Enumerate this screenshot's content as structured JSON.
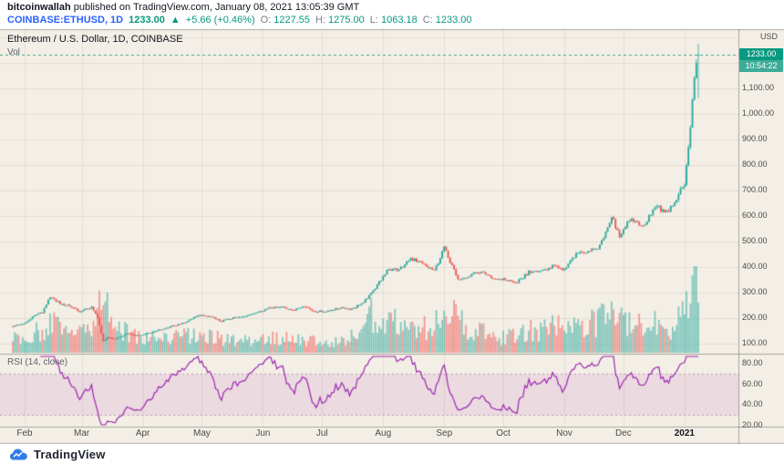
{
  "header": {
    "author": "bitcoinwallah",
    "published": " published on TradingView.com, January 08, 2021 13:05:39 GMT",
    "symbol": "COINBASE:ETHUSD, 1D",
    "price": "1233.00",
    "arrow": "▲",
    "change": "+5.66 (+0.46%)",
    "ohlc": {
      "o_label": "O:",
      "o": "1227.55",
      "h_label": "H:",
      "h": "1275.00",
      "l_label": "L:",
      "l": "1063.18",
      "c_label": "C:",
      "c": "1233.00"
    }
  },
  "legend": {
    "title": "Ethereum / U.S. Dollar, 1D, COINBASE",
    "volume_label": "Vol"
  },
  "rsi_panel": {
    "label": "RSI (14, close)"
  },
  "footer": {
    "brand": "TradingView"
  },
  "chart_data": {
    "type": "candlestick",
    "title": "Ethereum / U.S. Dollar, 1D, COINBASE",
    "symbol": "COINBASE:ETHUSD",
    "interval": "1D",
    "total_days": 348,
    "last_bar": {
      "open": 1227.55,
      "high": 1275.0,
      "low": 1063.18,
      "close": 1233.0
    },
    "price_label": "1233.00",
    "countdown": "10:54:22",
    "price_axis": {
      "currency": "USD",
      "ticks": [
        {
          "v": 100,
          "label": "100.00"
        },
        {
          "v": 200,
          "label": "200.00"
        },
        {
          "v": 300,
          "label": "300.00"
        },
        {
          "v": 400,
          "label": "400.00"
        },
        {
          "v": 500,
          "label": "500.00"
        },
        {
          "v": 600,
          "label": "600.00"
        },
        {
          "v": 700,
          "label": "700.00"
        },
        {
          "v": 800,
          "label": "800.00"
        },
        {
          "v": 900,
          "label": "900.00"
        },
        {
          "v": 1000,
          "label": "1,000.00"
        },
        {
          "v": 1100,
          "label": "1,100.00"
        }
      ]
    },
    "rsi_axis": {
      "ticks": [
        {
          "v": 80,
          "label": "80.00"
        },
        {
          "v": 60,
          "label": "60.00"
        },
        {
          "v": 40,
          "label": "40.00"
        },
        {
          "v": 20,
          "label": "20.00"
        }
      ]
    },
    "time_axis": [
      {
        "day": 6,
        "text": "Feb"
      },
      {
        "day": 35,
        "text": "Mar"
      },
      {
        "day": 66,
        "text": "Apr"
      },
      {
        "day": 96,
        "text": "May"
      },
      {
        "day": 127,
        "text": "Jun"
      },
      {
        "day": 157,
        "text": "Jul"
      },
      {
        "day": 188,
        "text": "Aug"
      },
      {
        "day": 219,
        "text": "Sep"
      },
      {
        "day": 249,
        "text": "Oct"
      },
      {
        "day": 280,
        "text": "Nov"
      },
      {
        "day": 310,
        "text": "Dec"
      },
      {
        "day": 341,
        "text": "2021",
        "bold": true
      }
    ],
    "price_anchors": [
      [
        0,
        168
      ],
      [
        6,
        180
      ],
      [
        10,
        205
      ],
      [
        15,
        223
      ],
      [
        19,
        285
      ],
      [
        24,
        258
      ],
      [
        29,
        246
      ],
      [
        34,
        225
      ],
      [
        40,
        244
      ],
      [
        43,
        200
      ],
      [
        46,
        110
      ],
      [
        48,
        125
      ],
      [
        52,
        118
      ],
      [
        58,
        138
      ],
      [
        64,
        132
      ],
      [
        70,
        143
      ],
      [
        76,
        158
      ],
      [
        82,
        171
      ],
      [
        88,
        186
      ],
      [
        94,
        212
      ],
      [
        100,
        206
      ],
      [
        106,
        188
      ],
      [
        112,
        201
      ],
      [
        118,
        207
      ],
      [
        124,
        220
      ],
      [
        130,
        240
      ],
      [
        136,
        246
      ],
      [
        142,
        231
      ],
      [
        148,
        243
      ],
      [
        154,
        225
      ],
      [
        160,
        229
      ],
      [
        166,
        241
      ],
      [
        172,
        234
      ],
      [
        178,
        262
      ],
      [
        184,
        317
      ],
      [
        190,
        386
      ],
      [
        196,
        392
      ],
      [
        202,
        433
      ],
      [
        208,
        416
      ],
      [
        214,
        385
      ],
      [
        219,
        475
      ],
      [
        221,
        440
      ],
      [
        226,
        352
      ],
      [
        232,
        366
      ],
      [
        238,
        384
      ],
      [
        244,
        351
      ],
      [
        250,
        353
      ],
      [
        256,
        341
      ],
      [
        262,
        381
      ],
      [
        268,
        379
      ],
      [
        274,
        405
      ],
      [
        280,
        388
      ],
      [
        286,
        454
      ],
      [
        292,
        463
      ],
      [
        298,
        482
      ],
      [
        304,
        598
      ],
      [
        308,
        522
      ],
      [
        314,
        592
      ],
      [
        320,
        556
      ],
      [
        326,
        638
      ],
      [
        332,
        614
      ],
      [
        338,
        684
      ],
      [
        341,
        730
      ],
      [
        343,
        880
      ],
      [
        345,
        1042
      ],
      [
        346,
        1130
      ],
      [
        347,
        1208
      ],
      [
        348,
        1233
      ]
    ],
    "volume_anchors": [
      [
        0,
        16
      ],
      [
        10,
        22
      ],
      [
        19,
        32
      ],
      [
        30,
        20
      ],
      [
        40,
        26
      ],
      [
        46,
        62
      ],
      [
        49,
        45
      ],
      [
        55,
        28
      ],
      [
        64,
        18
      ],
      [
        76,
        16
      ],
      [
        88,
        18
      ],
      [
        94,
        24
      ],
      [
        106,
        16
      ],
      [
        118,
        14
      ],
      [
        130,
        18
      ],
      [
        142,
        15
      ],
      [
        154,
        13
      ],
      [
        166,
        13
      ],
      [
        178,
        26
      ],
      [
        184,
        48
      ],
      [
        190,
        42
      ],
      [
        202,
        36
      ],
      [
        208,
        30
      ],
      [
        214,
        26
      ],
      [
        219,
        56
      ],
      [
        222,
        44
      ],
      [
        226,
        34
      ],
      [
        238,
        22
      ],
      [
        250,
        18
      ],
      [
        262,
        26
      ],
      [
        274,
        28
      ],
      [
        286,
        32
      ],
      [
        298,
        36
      ],
      [
        304,
        50
      ],
      [
        308,
        38
      ],
      [
        314,
        34
      ],
      [
        320,
        28
      ],
      [
        326,
        32
      ],
      [
        332,
        26
      ],
      [
        338,
        34
      ],
      [
        341,
        44
      ],
      [
        343,
        60
      ],
      [
        345,
        88
      ],
      [
        346,
        80
      ],
      [
        347,
        70
      ],
      [
        348,
        55
      ]
    ],
    "rsi": {
      "period": 14,
      "source": "close",
      "upper_band": 70,
      "lower_band": 30
    },
    "colors": {
      "up": "#26a69a",
      "down": "#ef5350",
      "rsi_line": "#9c27b0",
      "band_fill": "rgba(156,39,176,0.10)",
      "price_badge": "#089981",
      "background": "#f4efe6",
      "accent_blue": "#2962ff"
    },
    "seed": 11
  }
}
